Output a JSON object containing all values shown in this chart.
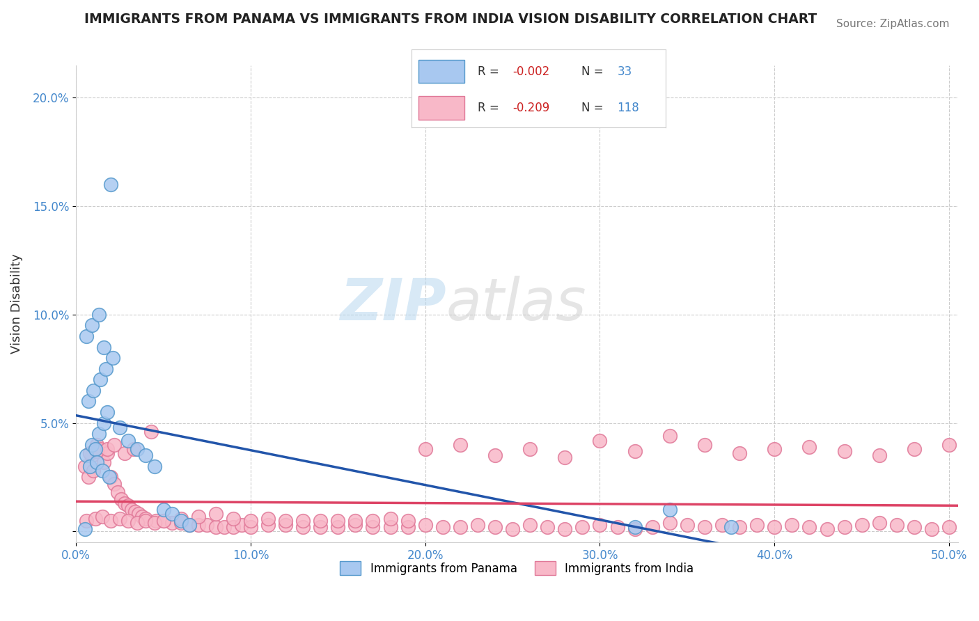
{
  "title": "IMMIGRANTS FROM PANAMA VS IMMIGRANTS FROM INDIA VISION DISABILITY CORRELATION CHART",
  "source": "Source: ZipAtlas.com",
  "xlabel_panama": "Immigrants from Panama",
  "xlabel_india": "Immigrants from India",
  "ylabel": "Vision Disability",
  "xlim": [
    0.0,
    0.505
  ],
  "ylim": [
    -0.005,
    0.215
  ],
  "xticks": [
    0.0,
    0.1,
    0.2,
    0.3,
    0.4,
    0.5
  ],
  "xtick_labels": [
    "0.0%",
    "10.0%",
    "20.0%",
    "30.0%",
    "40.0%",
    "50.0%"
  ],
  "yticks": [
    0.0,
    0.05,
    0.1,
    0.15,
    0.2
  ],
  "ytick_labels": [
    "",
    "5.0%",
    "10.0%",
    "15.0%",
    "20.0%"
  ],
  "panama_color": "#a8c8f0",
  "panama_edge_color": "#5599cc",
  "india_color": "#f8b8c8",
  "india_edge_color": "#e07898",
  "blue_line_color": "#2255aa",
  "pink_line_color": "#dd4466",
  "r_panama": -0.002,
  "n_panama": 33,
  "r_india": -0.209,
  "n_india": 118,
  "watermark_zip": "ZIP",
  "watermark_atlas": "atlas",
  "background_color": "#ffffff",
  "grid_color": "#cccccc",
  "panama_x": [
    0.006,
    0.009,
    0.011,
    0.013,
    0.016,
    0.018,
    0.008,
    0.012,
    0.015,
    0.019,
    0.007,
    0.01,
    0.014,
    0.017,
    0.021,
    0.006,
    0.009,
    0.013,
    0.016,
    0.02,
    0.025,
    0.03,
    0.035,
    0.04,
    0.045,
    0.05,
    0.055,
    0.06,
    0.065,
    0.32,
    0.34,
    0.375,
    0.005
  ],
  "panama_y": [
    0.035,
    0.04,
    0.038,
    0.045,
    0.05,
    0.055,
    0.03,
    0.032,
    0.028,
    0.025,
    0.06,
    0.065,
    0.07,
    0.075,
    0.08,
    0.09,
    0.095,
    0.1,
    0.085,
    0.16,
    0.048,
    0.042,
    0.038,
    0.035,
    0.03,
    0.01,
    0.008,
    0.005,
    0.003,
    0.002,
    0.01,
    0.002,
    0.001
  ],
  "india_x": [
    0.005,
    0.007,
    0.009,
    0.01,
    0.012,
    0.014,
    0.016,
    0.018,
    0.02,
    0.022,
    0.024,
    0.026,
    0.028,
    0.03,
    0.032,
    0.034,
    0.036,
    0.038,
    0.04,
    0.043,
    0.046,
    0.05,
    0.055,
    0.06,
    0.065,
    0.07,
    0.075,
    0.08,
    0.085,
    0.09,
    0.095,
    0.1,
    0.11,
    0.12,
    0.13,
    0.14,
    0.15,
    0.16,
    0.17,
    0.18,
    0.19,
    0.2,
    0.21,
    0.22,
    0.23,
    0.24,
    0.25,
    0.26,
    0.27,
    0.28,
    0.29,
    0.3,
    0.31,
    0.32,
    0.33,
    0.34,
    0.35,
    0.36,
    0.37,
    0.38,
    0.39,
    0.4,
    0.41,
    0.42,
    0.43,
    0.44,
    0.45,
    0.46,
    0.47,
    0.48,
    0.49,
    0.5,
    0.006,
    0.011,
    0.015,
    0.02,
    0.025,
    0.03,
    0.035,
    0.04,
    0.045,
    0.05,
    0.06,
    0.07,
    0.08,
    0.09,
    0.1,
    0.11,
    0.12,
    0.13,
    0.14,
    0.15,
    0.16,
    0.17,
    0.18,
    0.19,
    0.2,
    0.22,
    0.24,
    0.26,
    0.28,
    0.3,
    0.32,
    0.34,
    0.36,
    0.38,
    0.4,
    0.42,
    0.44,
    0.46,
    0.48,
    0.5,
    0.008,
    0.012,
    0.018,
    0.022,
    0.028,
    0.033
  ],
  "india_y": [
    0.03,
    0.025,
    0.035,
    0.028,
    0.04,
    0.038,
    0.032,
    0.036,
    0.025,
    0.022,
    0.018,
    0.015,
    0.013,
    0.012,
    0.01,
    0.009,
    0.008,
    0.007,
    0.006,
    0.046,
    0.005,
    0.005,
    0.004,
    0.004,
    0.003,
    0.003,
    0.003,
    0.002,
    0.002,
    0.002,
    0.003,
    0.002,
    0.003,
    0.003,
    0.002,
    0.002,
    0.002,
    0.003,
    0.002,
    0.002,
    0.002,
    0.003,
    0.002,
    0.002,
    0.003,
    0.002,
    0.001,
    0.003,
    0.002,
    0.001,
    0.002,
    0.003,
    0.002,
    0.001,
    0.002,
    0.004,
    0.003,
    0.002,
    0.003,
    0.002,
    0.003,
    0.002,
    0.003,
    0.002,
    0.001,
    0.002,
    0.003,
    0.004,
    0.003,
    0.002,
    0.001,
    0.002,
    0.005,
    0.006,
    0.007,
    0.005,
    0.006,
    0.005,
    0.004,
    0.005,
    0.004,
    0.005,
    0.006,
    0.007,
    0.008,
    0.006,
    0.005,
    0.006,
    0.005,
    0.005,
    0.005,
    0.005,
    0.005,
    0.005,
    0.006,
    0.005,
    0.038,
    0.04,
    0.035,
    0.038,
    0.034,
    0.042,
    0.037,
    0.044,
    0.04,
    0.036,
    0.038,
    0.039,
    0.037,
    0.035,
    0.038,
    0.04,
    0.036,
    0.037,
    0.038,
    0.04,
    0.036,
    0.038
  ]
}
